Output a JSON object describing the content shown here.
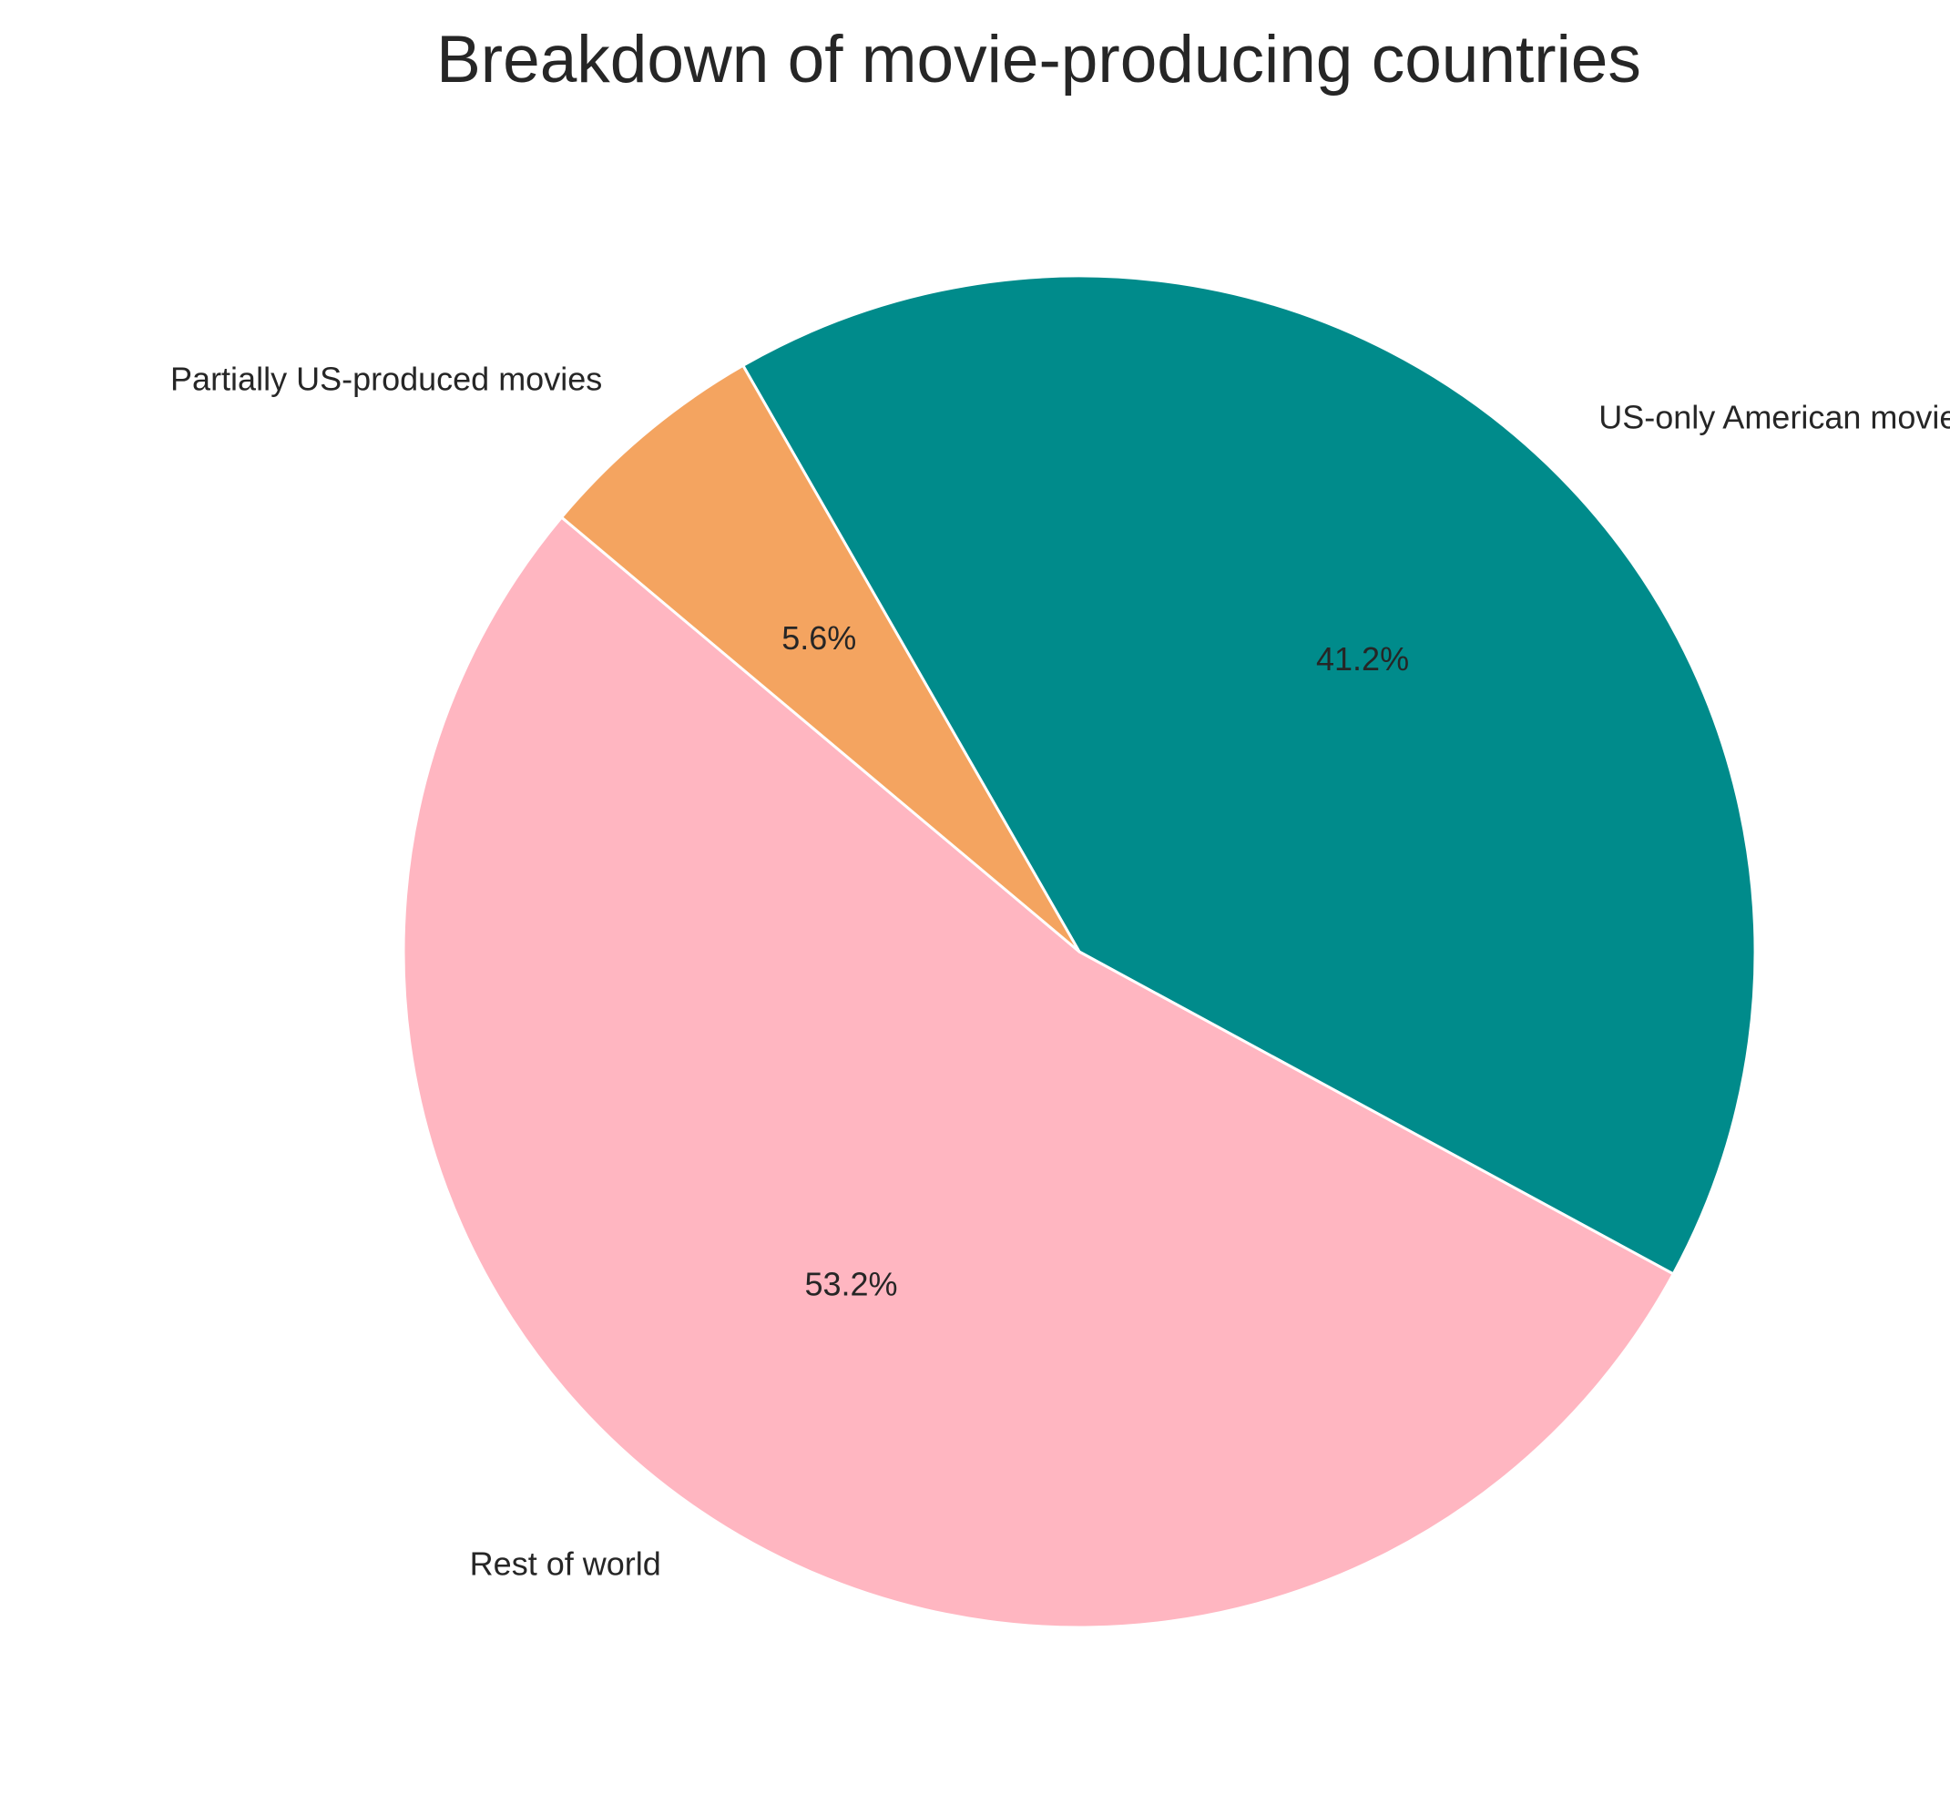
{
  "chart_data": {
    "type": "pie",
    "title": "Breakdown of movie-producing countries",
    "slices": [
      {
        "label": "Rest of world",
        "value": 53.2,
        "pct_label": "53.2%",
        "color": "#FFB6C1"
      },
      {
        "label": "US-only American movies",
        "value": 41.2,
        "pct_label": "41.2%",
        "color": "#008B8B"
      },
      {
        "label": "Partially US-produced movies",
        "value": 5.6,
        "pct_label": "5.6%",
        "color": "#F4A460"
      }
    ],
    "start_angle_deg": 140,
    "direction": "counterclockwise",
    "edge_color": "#ffffff"
  }
}
